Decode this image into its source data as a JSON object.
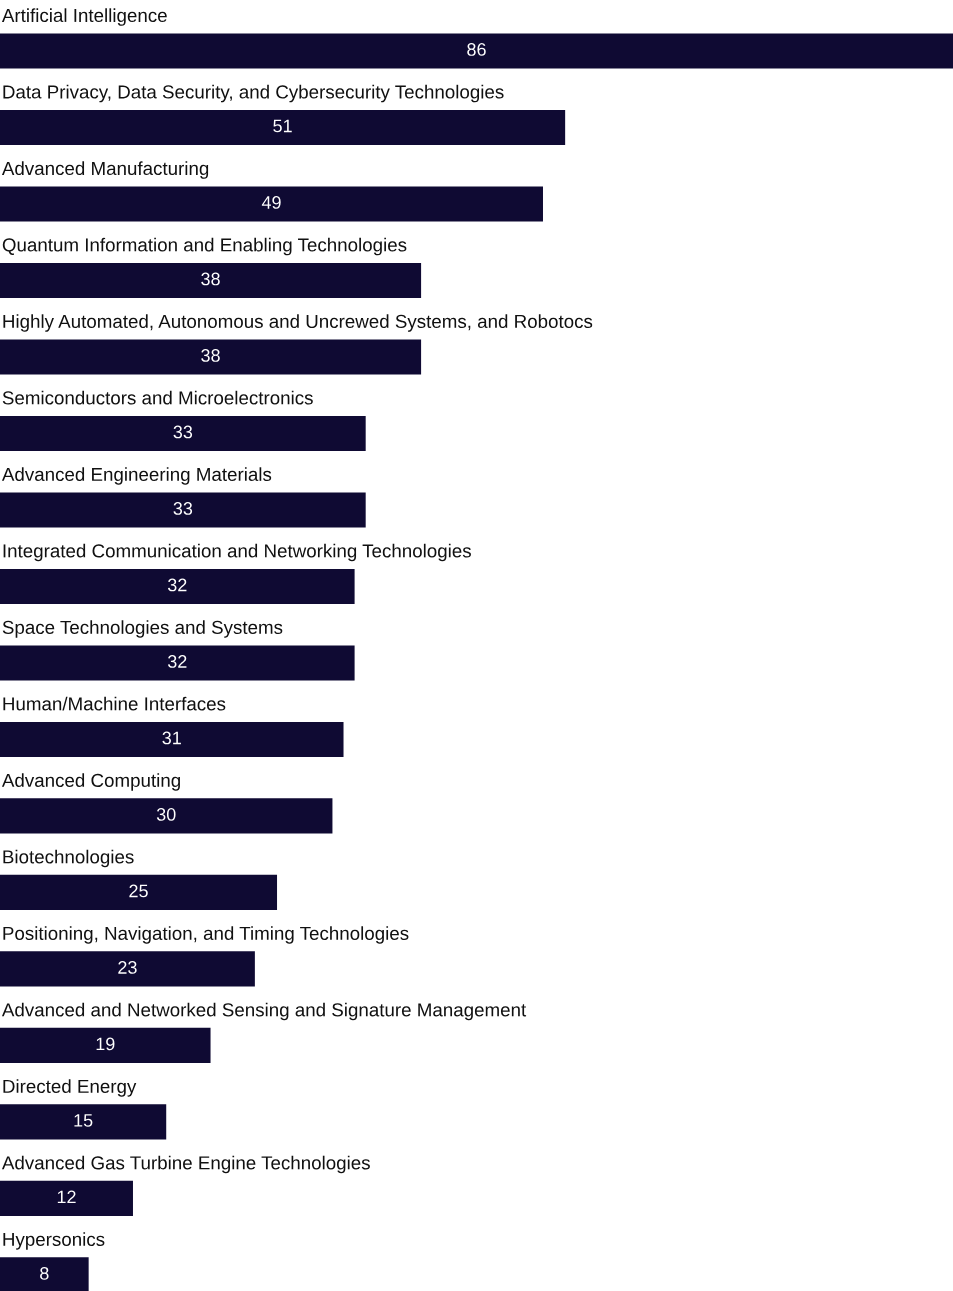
{
  "chart_data": {
    "type": "bar",
    "orientation": "horizontal",
    "categories": [
      "Artificial Intelligence",
      "Data Privacy, Data Security, and Cybersecurity Technologies",
      "Advanced Manufacturing",
      "Quantum Information and Enabling Technologies",
      "Highly Automated, Autonomous and Uncrewed Systems, and Robotocs",
      "Semiconductors and Microelectronics",
      "Advanced Engineering Materials",
      "Integrated Communication and Networking Technologies",
      "Space Technologies and Systems",
      "Human/Machine Interfaces",
      "Advanced Computing",
      "Biotechnologies",
      "Positioning, Navigation, and Timing Technologies",
      "Advanced and Networked Sensing and Signature Management",
      "Directed Energy",
      "Advanced Gas Turbine Engine Technologies",
      "Hypersonics"
    ],
    "values": [
      86,
      51,
      49,
      38,
      38,
      33,
      33,
      32,
      32,
      31,
      30,
      25,
      23,
      19,
      15,
      12,
      8
    ],
    "color": "#0f0a33",
    "data_labels": true
  }
}
